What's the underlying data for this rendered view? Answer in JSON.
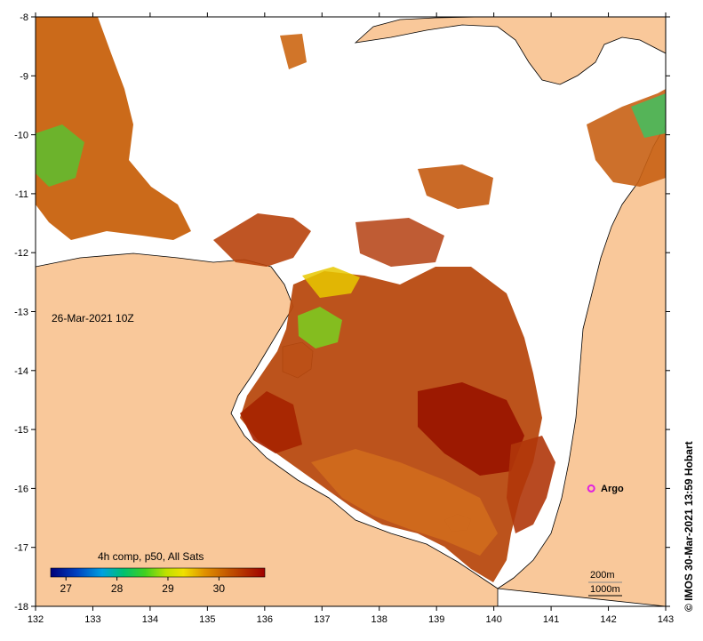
{
  "map": {
    "date_label": "26-Mar-2021 10Z",
    "credit": "© IMOS 30-Mar-2021 13:59 Hobart",
    "x_ticks": [
      "132",
      "133",
      "134",
      "135",
      "136",
      "137",
      "138",
      "139",
      "140",
      "141",
      "142",
      "143"
    ],
    "y_ticks": [
      "-8",
      "-9",
      "-10",
      "-11",
      "-12",
      "-13",
      "-14",
      "-15",
      "-16",
      "-17",
      "-18"
    ],
    "argo": {
      "label": "Argo",
      "lon": 141.7,
      "lat": -16.0
    },
    "depth_legend": [
      "200m",
      "1000m"
    ],
    "colorbar": {
      "title": "4h comp, p50, All Sats",
      "ticks": [
        "27",
        "28",
        "29",
        "30"
      ],
      "range": [
        26.7,
        30.9
      ]
    },
    "colors": {
      "land": "#f9c89a",
      "nodata": "#ffffff",
      "argo": "#e020e0"
    }
  }
}
